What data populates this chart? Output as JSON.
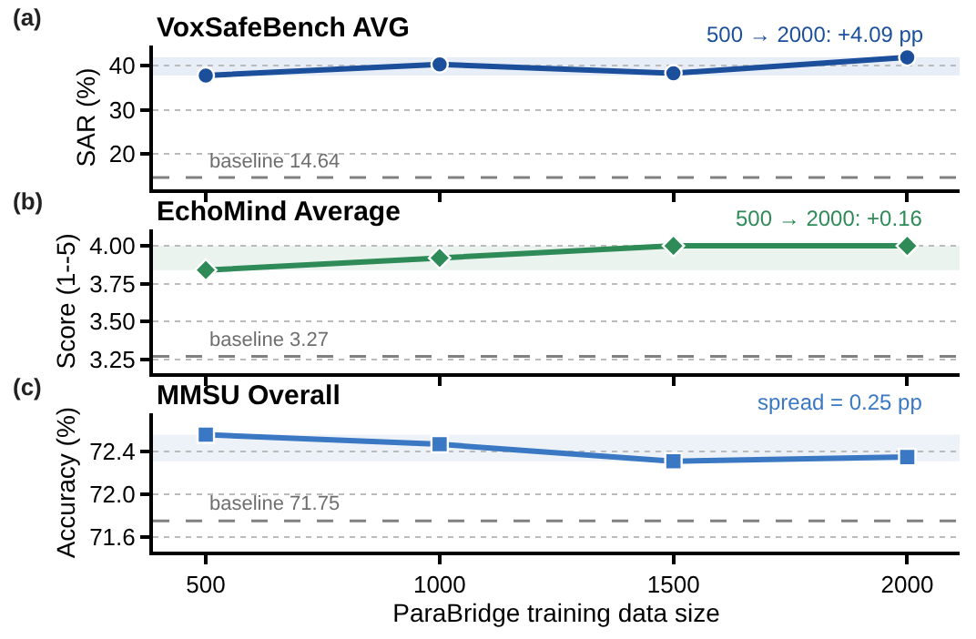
{
  "chart_data": [
    {
      "type": "line",
      "title": "VoxSafeBench AVG",
      "ylabel": "SAR (%)",
      "x": [
        500,
        1000,
        1500,
        2000
      ],
      "series": [
        {
          "color": "#1b4f9c",
          "values": [
            37.8,
            40.3,
            38.3,
            41.9
          ]
        }
      ],
      "marker": "circle",
      "xlim": [
        387,
        2112
      ],
      "xticks": [
        500,
        1000,
        1500,
        2000
      ],
      "ylim": [
        12,
        44.6
      ],
      "yticks": [
        20,
        30,
        40
      ],
      "grid": "y",
      "tick_labels": "y",
      "ref_lines": [
        {
          "axis": "y",
          "value": 14.64,
          "label": "baseline 14.64",
          "color": "#808080",
          "line_style": "dashed"
        }
      ],
      "bands": [
        {
          "axis": "y",
          "from": 37.8,
          "to": 41.9,
          "color": "#e8eef7"
        }
      ],
      "annotations": [
        "(a)",
        "500 → 2000: +4.09 pp"
      ]
    },
    {
      "type": "line",
      "title": "EchoMind Average",
      "ylabel": "Score (1--5)",
      "x": [
        500,
        1000,
        1500,
        2000
      ],
      "series": [
        {
          "color": "#2e8b57",
          "values": [
            3.84,
            3.92,
            4.0,
            4.0
          ]
        }
      ],
      "marker": "diamond",
      "xlim": [
        387,
        2112
      ],
      "xticks": [
        500,
        1000,
        1500,
        2000
      ],
      "ylim": [
        3.16,
        4.11
      ],
      "yticks": [
        {
          "value": 3.25,
          "label": "3.25"
        },
        {
          "value": 3.5,
          "label": "3.50"
        },
        {
          "value": 3.75,
          "label": "3.75"
        },
        {
          "value": 4.0,
          "label": "4.00"
        }
      ],
      "grid": "y",
      "tick_labels": "y",
      "ref_lines": [
        {
          "axis": "y",
          "value": 3.27,
          "label": "baseline 3.27",
          "color": "#808080",
          "line_style": "dashed"
        }
      ],
      "bands": [
        {
          "axis": "y",
          "from": 3.84,
          "to": 4.0,
          "color": "#eaf3ee"
        }
      ],
      "annotations": [
        "(b)",
        "500 → 2000: +0.16"
      ]
    },
    {
      "type": "line",
      "title": "MMSU Overall",
      "ylabel": "Accuracy (%)",
      "xlabel": "ParaBridge training data size",
      "x": [
        500,
        1000,
        1500,
        2000
      ],
      "series": [
        {
          "color": "#3a78c3",
          "values": [
            72.56,
            72.47,
            72.31,
            72.35
          ]
        }
      ],
      "marker": "square",
      "xlim": [
        387,
        2112
      ],
      "xticks": [
        500,
        1000,
        1500,
        2000
      ],
      "ylim": [
        71.46,
        72.76
      ],
      "yticks": [
        {
          "value": 71.6,
          "label": "71.6"
        },
        {
          "value": 72.0,
          "label": "72.0"
        },
        {
          "value": 72.4,
          "label": "72.4"
        }
      ],
      "grid": "y",
      "ref_lines": [
        {
          "axis": "y",
          "value": 71.75,
          "label": "baseline 71.75",
          "color": "#808080",
          "line_style": "dashed"
        }
      ],
      "bands": [
        {
          "axis": "y",
          "from": 72.31,
          "to": 72.56,
          "color": "#edf2f9"
        }
      ],
      "annotations": [
        "(c)",
        "spread = 0.25 pp"
      ]
    }
  ]
}
